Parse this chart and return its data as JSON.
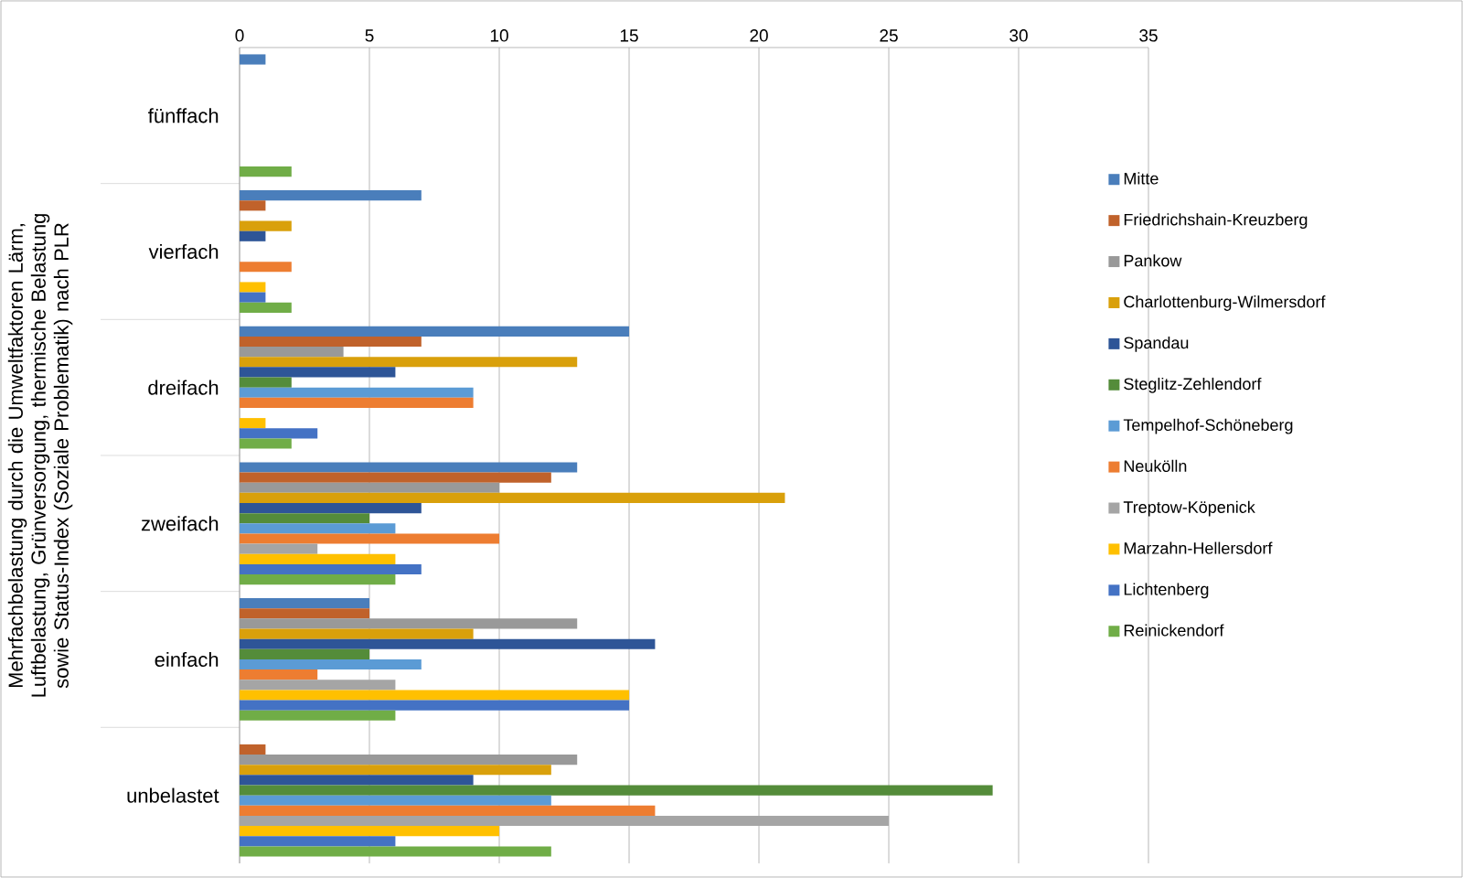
{
  "chart_data": {
    "type": "bar",
    "orientation": "horizontal",
    "ylabel": "Mehrfachbelastung durch die Umweltfaktoren Lärm, Luftbelastung, Grünversorgung, thermische Belastung sowie Status-Index (Soziale Problematik) nach PLR",
    "categories": [
      "fünffach",
      "vierfach",
      "dreifach",
      "zweifach",
      "einfach",
      "unbelastet"
    ],
    "series": [
      {
        "name": "Mitte",
        "color": "#4a7ebb",
        "values": [
          1,
          7,
          15,
          13,
          5,
          0
        ]
      },
      {
        "name": "Friedrichshain-Kreuzberg",
        "color": "#c0622b",
        "values": [
          0,
          1,
          7,
          12,
          5,
          1
        ]
      },
      {
        "name": "Pankow",
        "color": "#999999",
        "values": [
          0,
          0,
          4,
          10,
          13,
          13
        ]
      },
      {
        "name": "Charlottenburg-Wilmersdorf",
        "color": "#d9a00b",
        "values": [
          0,
          2,
          13,
          21,
          9,
          12
        ]
      },
      {
        "name": "Spandau",
        "color": "#2e5597",
        "values": [
          0,
          1,
          6,
          7,
          16,
          9
        ]
      },
      {
        "name": "Steglitz-Zehlendorf",
        "color": "#548c3a",
        "values": [
          0,
          0,
          2,
          5,
          5,
          29
        ]
      },
      {
        "name": "Tempelhof-Schöneberg",
        "color": "#5b9bd5",
        "values": [
          0,
          0,
          9,
          6,
          7,
          12
        ]
      },
      {
        "name": "Neukölln",
        "color": "#ed7d31",
        "values": [
          0,
          2,
          9,
          10,
          3,
          16
        ]
      },
      {
        "name": "Treptow-Köpenick",
        "color": "#a5a5a5",
        "values": [
          0,
          0,
          0,
          3,
          6,
          25
        ]
      },
      {
        "name": "Marzahn-Hellersdorf",
        "color": "#ffc000",
        "values": [
          0,
          1,
          1,
          6,
          15,
          10
        ]
      },
      {
        "name": "Lichtenberg",
        "color": "#4472c4",
        "values": [
          0,
          1,
          3,
          7,
          15,
          6
        ]
      },
      {
        "name": "Reinickendorf",
        "color": "#70ad47",
        "values": [
          2,
          2,
          2,
          6,
          6,
          12
        ]
      }
    ],
    "xlim": [
      0,
      35
    ],
    "xticks": [
      0,
      5,
      10,
      15,
      20,
      25,
      30,
      35
    ],
    "grid": "x",
    "legend": "right"
  }
}
